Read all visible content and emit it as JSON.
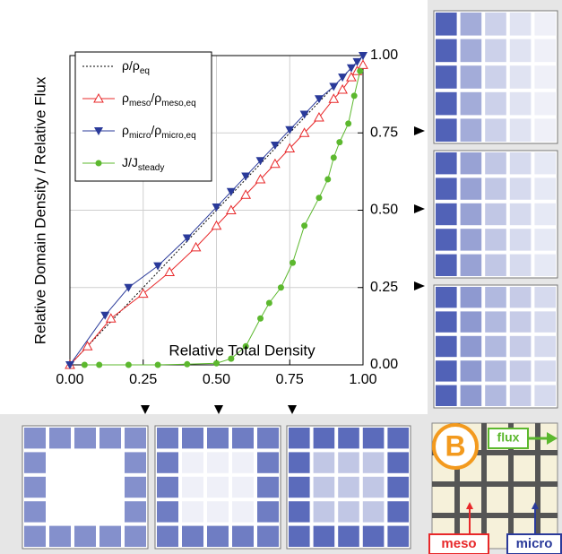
{
  "chart_data": {
    "type": "line",
    "x_label": "Relative Total Density",
    "y_label": "Relative Domain Density / Relative Flux",
    "xlim": [
      0,
      1
    ],
    "ylim": [
      0,
      1
    ],
    "xticks": [
      {
        "value": 0,
        "label": "0.00"
      },
      {
        "value": 0.25,
        "label": "0.25"
      },
      {
        "value": 0.5,
        "label": "0.50"
      },
      {
        "value": 0.75,
        "label": "0.75"
      },
      {
        "value": 1,
        "label": "1.00"
      }
    ],
    "yticks": [
      {
        "value": 0,
        "label": "0.00"
      },
      {
        "value": 0.25,
        "label": "0.25"
      },
      {
        "value": 0.5,
        "label": "0.50"
      },
      {
        "value": 0.75,
        "label": "0.75"
      },
      {
        "value": 1,
        "label": "1.00"
      }
    ],
    "grid": true,
    "series": [
      {
        "name": [
          "ρ/ρ",
          "eq"
        ],
        "color": "#000000",
        "marker": "none",
        "dash": true,
        "x": [
          0,
          1
        ],
        "values": [
          0,
          1
        ]
      },
      {
        "name": [
          "ρ",
          "meso",
          "/ρ",
          "meso,eq"
        ],
        "color": "#e8282a",
        "marker": "triangle-open",
        "x": [
          0,
          0.06,
          0.14,
          0.25,
          0.34,
          0.43,
          0.5,
          0.55,
          0.6,
          0.65,
          0.7,
          0.75,
          0.8,
          0.85,
          0.9,
          0.93,
          0.96,
          0.98,
          1
        ],
        "values": [
          0,
          0.06,
          0.15,
          0.23,
          0.3,
          0.38,
          0.45,
          0.5,
          0.55,
          0.6,
          0.65,
          0.7,
          0.75,
          0.8,
          0.86,
          0.89,
          0.93,
          0.95,
          0.97
        ]
      },
      {
        "name": [
          "ρ",
          "micro",
          "/ρ",
          "micro,eq"
        ],
        "color": "#2a3a9a",
        "marker": "triangle-down",
        "x": [
          0,
          0.12,
          0.2,
          0.3,
          0.4,
          0.5,
          0.55,
          0.6,
          0.65,
          0.7,
          0.75,
          0.8,
          0.85,
          0.9,
          0.93,
          0.96,
          0.98,
          1
        ],
        "values": [
          0,
          0.16,
          0.25,
          0.32,
          0.41,
          0.51,
          0.56,
          0.61,
          0.66,
          0.71,
          0.76,
          0.81,
          0.86,
          0.9,
          0.93,
          0.96,
          0.98,
          1
        ]
      },
      {
        "name": [
          "J/J",
          "steady"
        ],
        "color": "#5cb82e",
        "marker": "circle",
        "x": [
          0.05,
          0.1,
          0.2,
          0.3,
          0.4,
          0.5,
          0.55,
          0.6,
          0.65,
          0.68,
          0.72,
          0.76,
          0.8,
          0.85,
          0.88,
          0.9,
          0.92,
          0.95,
          0.97,
          0.99
        ],
        "values": [
          0,
          0,
          0,
          0,
          0.002,
          0.005,
          0.02,
          0.06,
          0.15,
          0.2,
          0.25,
          0.33,
          0.45,
          0.54,
          0.6,
          0.67,
          0.72,
          0.78,
          0.87,
          0.95
        ]
      }
    ]
  },
  "panel_b": {
    "letter": "B",
    "flux": "flux",
    "meso": "meso",
    "micro": "micro"
  }
}
